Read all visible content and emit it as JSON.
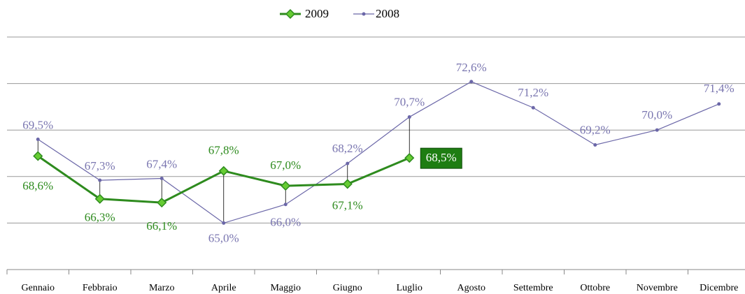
{
  "chart_data": {
    "type": "line",
    "categories": [
      "Gennaio",
      "Febbraio",
      "Marzo",
      "Aprile",
      "Maggio",
      "Giugno",
      "Luglio",
      "Agosto",
      "Settembre",
      "Ottobre",
      "Novembre",
      "Dicembre"
    ],
    "series": [
      {
        "name": "2009",
        "color": "#2e8b1e",
        "values": [
          68.6,
          66.3,
          66.1,
          67.8,
          67.0,
          67.1,
          68.5,
          null,
          null,
          null,
          null,
          null
        ],
        "value_labels": [
          "68,6%",
          "66,3%",
          "66,1%",
          "67,8%",
          "67,0%",
          "67,1%",
          "68,5%",
          null,
          null,
          null,
          null,
          null
        ]
      },
      {
        "name": "2008",
        "color": "#6b67a8",
        "values": [
          69.5,
          67.3,
          67.4,
          65.0,
          66.0,
          68.2,
          70.7,
          72.6,
          71.2,
          69.2,
          70.0,
          71.4
        ],
        "value_labels": [
          "69,5%",
          "67,3%",
          "67,4%",
          "65,0%",
          "66,0%",
          "68,2%",
          "70,7%",
          "72,6%",
          "71,2%",
          "69,2%",
          "70,0%",
          "71,4%"
        ]
      }
    ],
    "ylim": [
      62.5,
      75
    ],
    "yticks": [
      65,
      67.5,
      70,
      72.5,
      75
    ],
    "grid": true,
    "legend": "top"
  }
}
